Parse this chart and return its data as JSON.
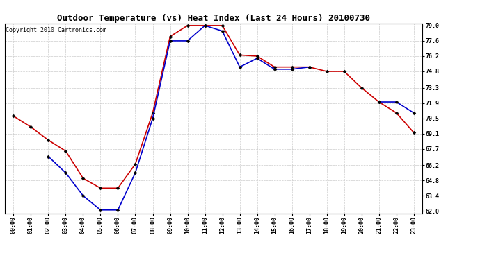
{
  "title": "Outdoor Temperature (vs) Heat Index (Last 24 Hours) 20100730",
  "copyright": "Copyright 2010 Cartronics.com",
  "x_labels": [
    "00:00",
    "01:00",
    "02:00",
    "03:00",
    "04:00",
    "05:00",
    "06:00",
    "07:00",
    "08:00",
    "09:00",
    "10:00",
    "11:00",
    "12:00",
    "13:00",
    "14:00",
    "15:00",
    "16:00",
    "17:00",
    "18:00",
    "19:00",
    "20:00",
    "21:00",
    "22:00",
    "23:00"
  ],
  "red_temp": [
    70.7,
    69.7,
    68.5,
    67.5,
    65.0,
    64.1,
    64.1,
    66.3,
    71.0,
    78.0,
    79.0,
    79.0,
    79.0,
    76.3,
    76.2,
    75.2,
    75.2,
    75.2,
    74.8,
    74.8,
    73.3,
    72.0,
    71.0,
    69.2
  ],
  "blue_heat": [
    null,
    null,
    67.0,
    65.5,
    63.4,
    62.1,
    62.1,
    65.5,
    70.5,
    77.6,
    77.6,
    79.0,
    78.5,
    75.2,
    76.0,
    75.0,
    75.0,
    75.2,
    null,
    null,
    null,
    72.0,
    72.0,
    71.0
  ],
  "ylim": [
    62.0,
    79.0
  ],
  "yticks": [
    62.0,
    63.4,
    64.8,
    66.2,
    67.7,
    69.1,
    70.5,
    71.9,
    73.3,
    74.8,
    76.2,
    77.6,
    79.0
  ],
  "red_color": "#cc0000",
  "blue_color": "#0000cc",
  "grid_color": "#cccccc",
  "bg_color": "#ffffff",
  "marker": "D",
  "marker_size": 2.5,
  "line_width": 1.2,
  "title_fontsize": 9,
  "tick_fontsize": 6,
  "copyright_fontsize": 6
}
